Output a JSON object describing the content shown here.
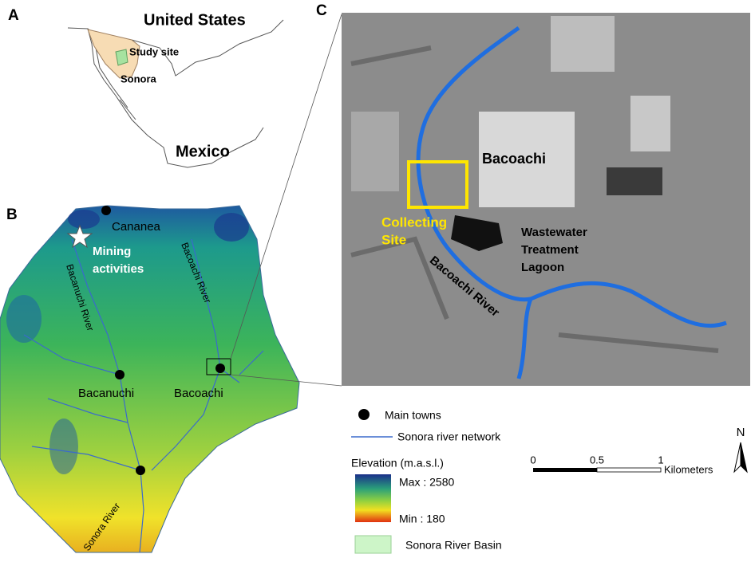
{
  "panel_a": {
    "label": "A",
    "country_top": "United States",
    "study_site": "Study site",
    "state": "Sonora",
    "country_bottom": "Mexico"
  },
  "panel_b": {
    "label": "B",
    "towns": [
      "Cananea",
      "Bacanuchi",
      "Bacoachi"
    ],
    "annotation": [
      "Mining",
      "activities"
    ],
    "rivers": [
      "Bacanuchi River",
      "Bacoachi River",
      "Sonora River"
    ]
  },
  "panel_c": {
    "label": "C",
    "town": "Bacoachi",
    "collecting_site": [
      "Collecting",
      "Site"
    ],
    "lagoon": [
      "Wastewater",
      "Treatment",
      "Lagoon"
    ],
    "river": "Bacoachi River"
  },
  "legend": {
    "towns": "Main towns",
    "network": "Sonora river network",
    "elevation_title": "Elevation (m.a.s.l.)",
    "max": "Max : 2580",
    "min": "Min : 180",
    "basin": "Sonora River Basin"
  },
  "scale_bar": {
    "ticks": [
      "0",
      "0.5",
      "1"
    ],
    "unit": "Kilometers"
  },
  "north": "N"
}
